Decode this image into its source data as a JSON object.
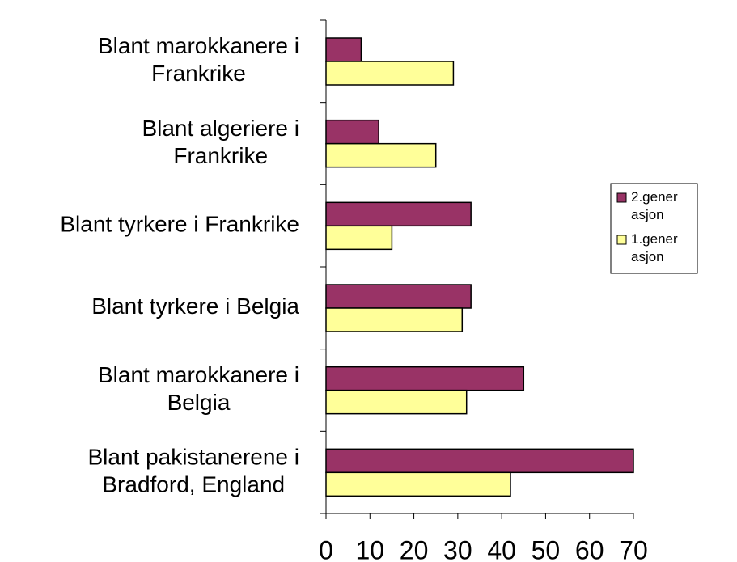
{
  "chart_data": {
    "type": "hbar",
    "categories": [
      [
        "Blant marokkanere i",
        "Frankrike"
      ],
      [
        "Blant algeriere i",
        "Frankrike"
      ],
      [
        "Blant tyrkere i Frankrike"
      ],
      [
        "Blant tyrkere i Belgia"
      ],
      [
        "Blant marokkanere i",
        "Belgia"
      ],
      [
        "Blant pakistanerene i",
        "Bradford, England"
      ]
    ],
    "series": [
      {
        "name": "2.generasjon",
        "color": "#993366",
        "values": [
          8,
          12,
          33,
          33,
          45,
          70
        ]
      },
      {
        "name": "1.generasjon",
        "color": "#ffff99",
        "values": [
          29,
          25,
          15,
          31,
          32,
          42
        ]
      }
    ],
    "xlim": [
      0,
      70
    ],
    "xticks": [
      0,
      10,
      20,
      30,
      40,
      50,
      60,
      70
    ],
    "grid": false,
    "legend": "right"
  }
}
